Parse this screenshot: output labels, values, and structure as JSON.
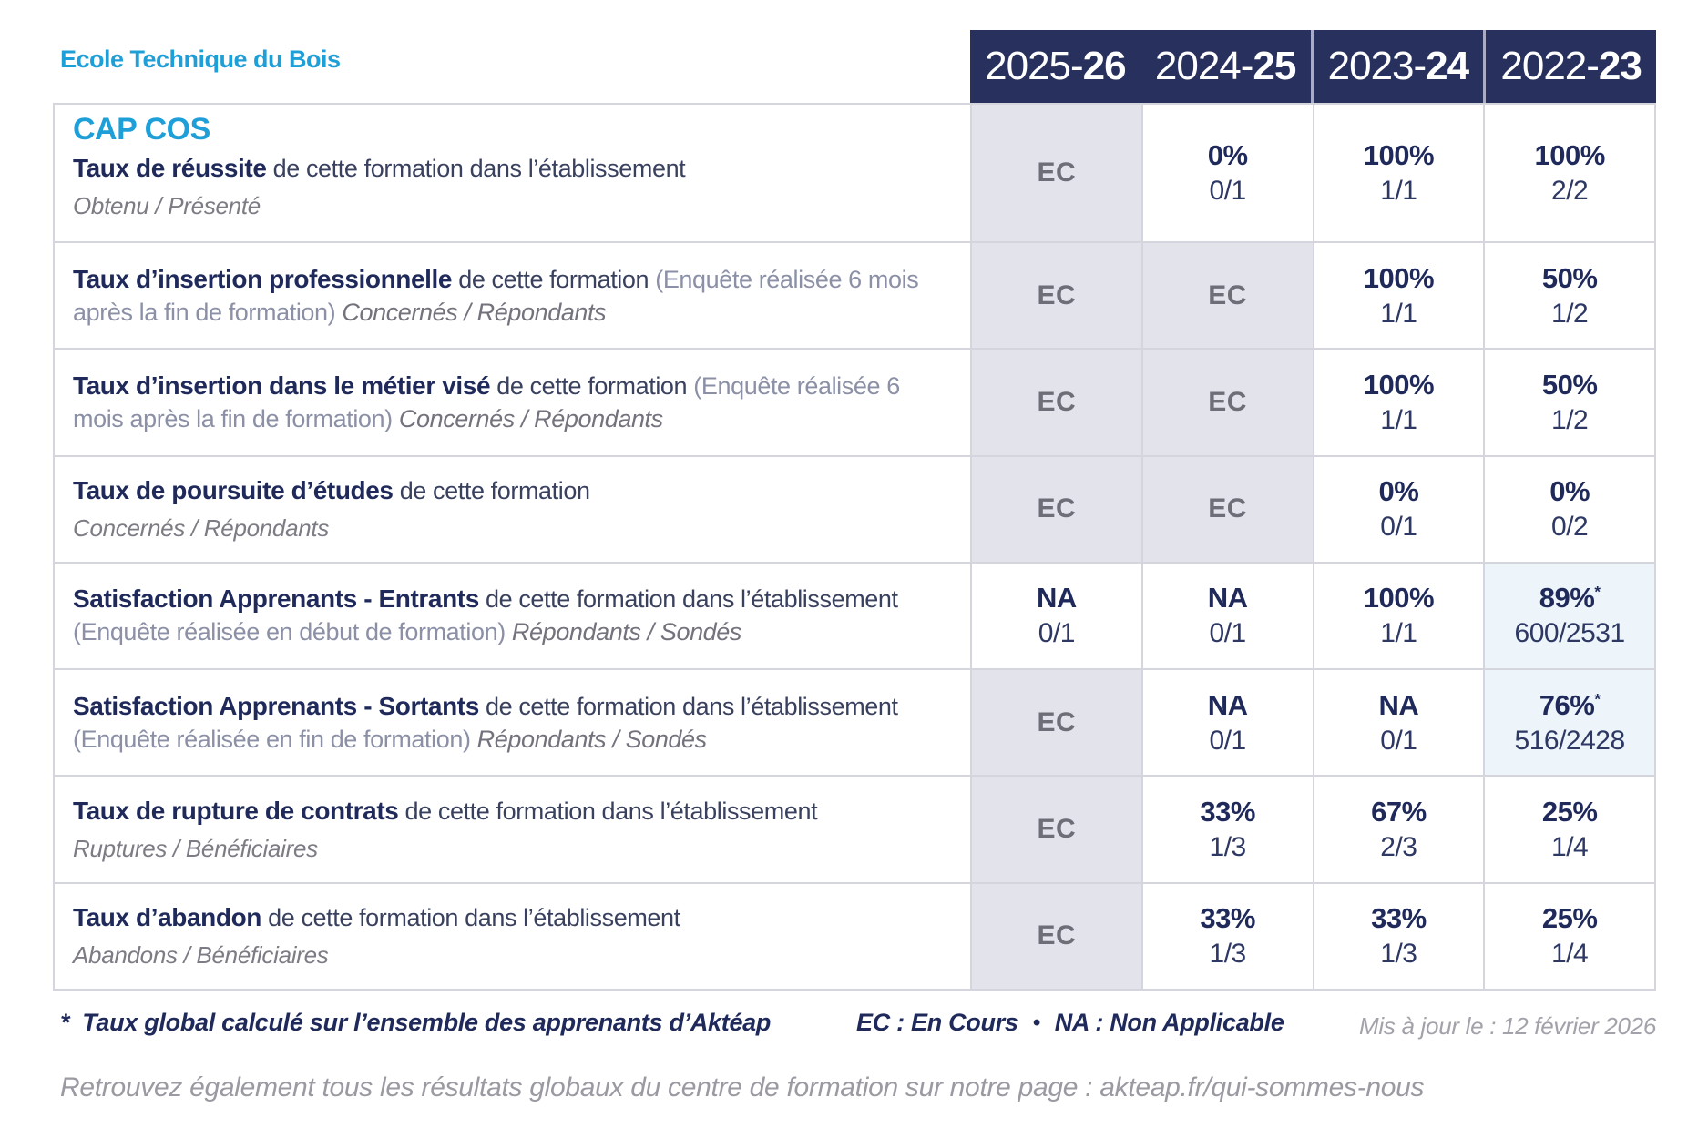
{
  "colors": {
    "brand_blue": "#1E9FD8",
    "header_navy": "#28315E",
    "text_navy": "#1F2A5B",
    "ec_cell_bg": "#E3E3EC",
    "highlight_cell_bg": "#EDF5FB",
    "border_gray": "#D5D5DD"
  },
  "school_name": "Ecole Technique du Bois",
  "program": "CAP COS",
  "years": [
    {
      "pre": "2025-",
      "suf": "26"
    },
    {
      "pre": "2024-",
      "suf": "25"
    },
    {
      "pre": "2023-",
      "suf": "24"
    },
    {
      "pre": "2022-",
      "suf": "23"
    }
  ],
  "rows": [
    {
      "title": "Taux de réussite",
      "desc": "de cette formation dans l’établissement",
      "note": "",
      "tail": "",
      "sub": "Obtenu / Présenté",
      "cells": [
        {
          "main": "EC",
          "frac": "",
          "star": ""
        },
        {
          "main": "0%",
          "frac": "0/1",
          "star": ""
        },
        {
          "main": "100%",
          "frac": "1/1",
          "star": ""
        },
        {
          "main": "100%",
          "frac": "2/2",
          "star": ""
        }
      ]
    },
    {
      "title": "Taux d’insertion professionnelle",
      "desc": "de cette formation",
      "note": "(Enquête réalisée 6 mois après la fin de formation)",
      "tail": "Concernés / Répondants",
      "sub": "",
      "cells": [
        {
          "main": "EC",
          "frac": "",
          "star": ""
        },
        {
          "main": "EC",
          "frac": "",
          "star": ""
        },
        {
          "main": "100%",
          "frac": "1/1",
          "star": ""
        },
        {
          "main": "50%",
          "frac": "1/2",
          "star": ""
        }
      ]
    },
    {
      "title": "Taux d’insertion dans le métier visé",
      "desc": "de cette formation",
      "note": "(Enquête réalisée 6 mois après la fin de formation)",
      "tail": "Concernés / Répondants",
      "sub": "",
      "cells": [
        {
          "main": "EC",
          "frac": "",
          "star": ""
        },
        {
          "main": "EC",
          "frac": "",
          "star": ""
        },
        {
          "main": "100%",
          "frac": "1/1",
          "star": ""
        },
        {
          "main": "50%",
          "frac": "1/2",
          "star": ""
        }
      ]
    },
    {
      "title": "Taux de poursuite d’études",
      "desc": "de cette formation",
      "note": "",
      "tail": "",
      "sub": "Concernés / Répondants",
      "cells": [
        {
          "main": "EC",
          "frac": "",
          "star": ""
        },
        {
          "main": "EC",
          "frac": "",
          "star": ""
        },
        {
          "main": "0%",
          "frac": "0/1",
          "star": ""
        },
        {
          "main": "0%",
          "frac": "0/2",
          "star": ""
        }
      ]
    },
    {
      "title": "Satisfaction Apprenants - Entrants",
      "desc": "de cette formation dans l’établissement",
      "note": "(Enquête réalisée en début de formation)",
      "tail": "Répondants / Sondés",
      "sub": "",
      "cells": [
        {
          "main": "NA",
          "frac": "0/1",
          "star": ""
        },
        {
          "main": "NA",
          "frac": "0/1",
          "star": ""
        },
        {
          "main": "100%",
          "frac": "1/1",
          "star": ""
        },
        {
          "main": "89%",
          "frac": "600/2531",
          "star": "*"
        }
      ]
    },
    {
      "title": "Satisfaction Apprenants - Sortants",
      "desc": "de cette formation dans l’établissement",
      "note": "(Enquête réalisée en fin de formation)",
      "tail": "Répondants / Sondés",
      "sub": "",
      "cells": [
        {
          "main": "EC",
          "frac": "",
          "star": ""
        },
        {
          "main": "NA",
          "frac": "0/1",
          "star": ""
        },
        {
          "main": "NA",
          "frac": "0/1",
          "star": ""
        },
        {
          "main": "76%",
          "frac": "516/2428",
          "star": "*"
        }
      ]
    },
    {
      "title": "Taux de rupture de contrats",
      "desc": "de cette formation dans l’établissement",
      "note": "",
      "tail": "",
      "sub": "Ruptures / Bénéficiaires",
      "cells": [
        {
          "main": "EC",
          "frac": "",
          "star": ""
        },
        {
          "main": "33%",
          "frac": "1/3",
          "star": ""
        },
        {
          "main": "67%",
          "frac": "2/3",
          "star": ""
        },
        {
          "main": "25%",
          "frac": "1/4",
          "star": ""
        }
      ]
    },
    {
      "title": "Taux d’abandon",
      "desc": "de cette formation dans l’établissement",
      "note": "",
      "tail": "",
      "sub": "Abandons / Bénéficiaires",
      "cells": [
        {
          "main": "EC",
          "frac": "",
          "star": ""
        },
        {
          "main": "33%",
          "frac": "1/3",
          "star": ""
        },
        {
          "main": "33%",
          "frac": "1/3",
          "star": ""
        },
        {
          "main": "25%",
          "frac": "1/4",
          "star": ""
        }
      ]
    }
  ],
  "footer": {
    "star": "*",
    "note": "Taux global calculé sur l’ensemble des apprenants d’Aktéap",
    "legend_ec": "EC : En Cours",
    "bullet": "•",
    "legend_na": "NA : Non Applicable",
    "updated": "Mis à jour le : 12 février 2026",
    "info": "Retrouvez également tous les résultats globaux du centre de formation sur notre page :",
    "link": "akteap.fr/qui-sommes-nous"
  }
}
